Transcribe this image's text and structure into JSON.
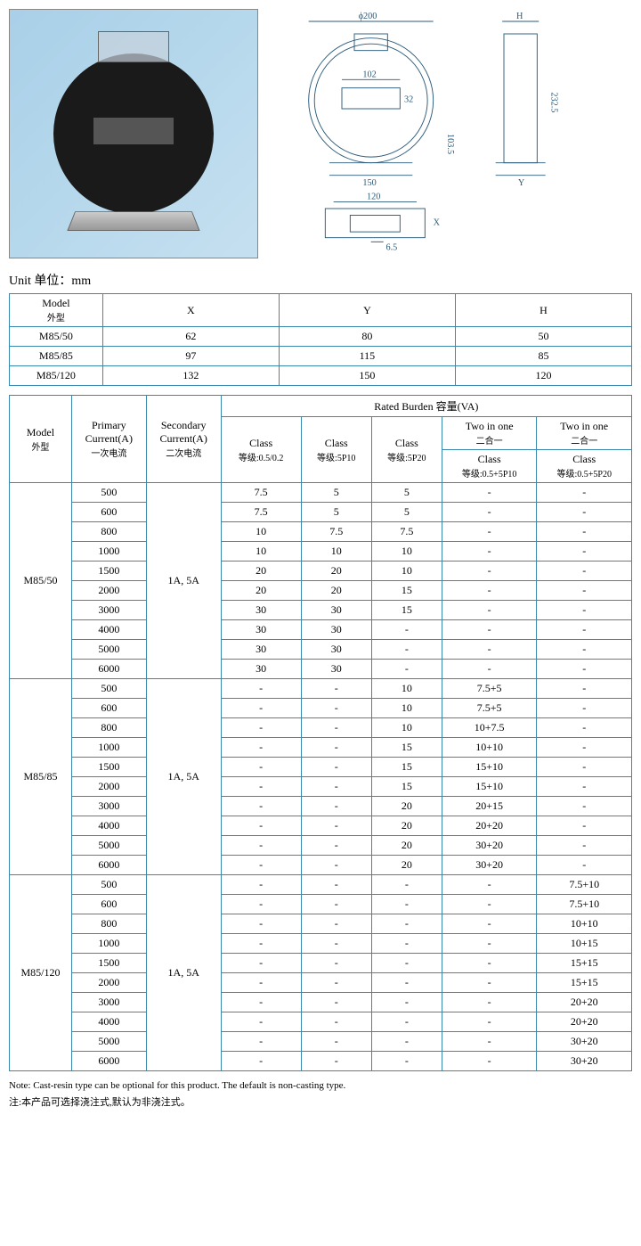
{
  "unit_label": "Unit 单位：mm",
  "drawing_dims": {
    "phi200": "ϕ200",
    "d102": "102",
    "d32": "32",
    "d150": "150",
    "d232_5": "232.5",
    "d103_5": "103.5",
    "H": "H",
    "Y": "Y",
    "X": "X",
    "d120": "120",
    "d6_5": "6.5"
  },
  "table1": {
    "headers": {
      "model": "Model",
      "model_cn": "外型",
      "X": "X",
      "Y": "Y",
      "H": "H"
    },
    "rows": [
      {
        "model": "M85/50",
        "X": "62",
        "Y": "80",
        "H": "50"
      },
      {
        "model": "M85/85",
        "X": "97",
        "Y": "115",
        "H": "85"
      },
      {
        "model": "M85/120",
        "X": "132",
        "Y": "150",
        "H": "120"
      }
    ]
  },
  "table2": {
    "headers": {
      "model": "Model",
      "model_cn": "外型",
      "primary": "Primary Current(A)",
      "primary_cn": "一次电流",
      "secondary": "Secondary Current(A)",
      "secondary_cn": "二次电流",
      "rated_burden": "Rated Burden 容量(VA)",
      "class1": "Class",
      "class1_cn": "等级:0.5/0.2",
      "class2": "Class",
      "class2_cn": "等级:5P10",
      "class3": "Class",
      "class3_cn": "等级:5P20",
      "two_in_one_a": "Two in one",
      "two_in_one_a_cn": "二合一",
      "class4": "Class",
      "class4_cn": "等级:0.5+5P10",
      "two_in_one_b": "Two in one",
      "two_in_one_b_cn": "二合一",
      "class5": "Class",
      "class5_cn": "等级:0.5+5P20"
    },
    "groups": [
      {
        "model": "M85/50",
        "secondary": "1A, 5A",
        "rows": [
          {
            "p": "500",
            "c1": "7.5",
            "c2": "5",
            "c3": "5",
            "c4": "-",
            "c5": "-"
          },
          {
            "p": "600",
            "c1": "7.5",
            "c2": "5",
            "c3": "5",
            "c4": "-",
            "c5": "-"
          },
          {
            "p": "800",
            "c1": "10",
            "c2": "7.5",
            "c3": "7.5",
            "c4": "-",
            "c5": "-"
          },
          {
            "p": "1000",
            "c1": "10",
            "c2": "10",
            "c3": "10",
            "c4": "-",
            "c5": "-"
          },
          {
            "p": "1500",
            "c1": "20",
            "c2": "20",
            "c3": "10",
            "c4": "-",
            "c5": "-"
          },
          {
            "p": "2000",
            "c1": "20",
            "c2": "20",
            "c3": "15",
            "c4": "-",
            "c5": "-"
          },
          {
            "p": "3000",
            "c1": "30",
            "c2": "30",
            "c3": "15",
            "c4": "-",
            "c5": "-"
          },
          {
            "p": "4000",
            "c1": "30",
            "c2": "30",
            "c3": "-",
            "c4": "-",
            "c5": "-"
          },
          {
            "p": "5000",
            "c1": "30",
            "c2": "30",
            "c3": "-",
            "c4": "-",
            "c5": "-"
          },
          {
            "p": "6000",
            "c1": "30",
            "c2": "30",
            "c3": "-",
            "c4": "-",
            "c5": "-"
          }
        ]
      },
      {
        "model": "M85/85",
        "secondary": "1A, 5A",
        "rows": [
          {
            "p": "500",
            "c1": "-",
            "c2": "-",
            "c3": "10",
            "c4": "7.5+5",
            "c5": "-"
          },
          {
            "p": "600",
            "c1": "-",
            "c2": "-",
            "c3": "10",
            "c4": "7.5+5",
            "c5": "-"
          },
          {
            "p": "800",
            "c1": "-",
            "c2": "-",
            "c3": "10",
            "c4": "10+7.5",
            "c5": "-"
          },
          {
            "p": "1000",
            "c1": "-",
            "c2": "-",
            "c3": "15",
            "c4": "10+10",
            "c5": "-"
          },
          {
            "p": "1500",
            "c1": "-",
            "c2": "-",
            "c3": "15",
            "c4": "15+10",
            "c5": "-"
          },
          {
            "p": "2000",
            "c1": "-",
            "c2": "-",
            "c3": "15",
            "c4": "15+10",
            "c5": "-"
          },
          {
            "p": "3000",
            "c1": "-",
            "c2": "-",
            "c3": "20",
            "c4": "20+15",
            "c5": "-"
          },
          {
            "p": "4000",
            "c1": "-",
            "c2": "-",
            "c3": "20",
            "c4": "20+20",
            "c5": "-"
          },
          {
            "p": "5000",
            "c1": "-",
            "c2": "-",
            "c3": "20",
            "c4": "30+20",
            "c5": "-"
          },
          {
            "p": "6000",
            "c1": "-",
            "c2": "-",
            "c3": "20",
            "c4": "30+20",
            "c5": "-"
          }
        ]
      },
      {
        "model": "M85/120",
        "secondary": "1A, 5A",
        "rows": [
          {
            "p": "500",
            "c1": "-",
            "c2": "-",
            "c3": "-",
            "c4": "-",
            "c5": "7.5+10"
          },
          {
            "p": "600",
            "c1": "-",
            "c2": "-",
            "c3": "-",
            "c4": "-",
            "c5": "7.5+10"
          },
          {
            "p": "800",
            "c1": "-",
            "c2": "-",
            "c3": "-",
            "c4": "-",
            "c5": "10+10"
          },
          {
            "p": "1000",
            "c1": "-",
            "c2": "-",
            "c3": "-",
            "c4": "-",
            "c5": "10+15"
          },
          {
            "p": "1500",
            "c1": "-",
            "c2": "-",
            "c3": "-",
            "c4": "-",
            "c5": "15+15"
          },
          {
            "p": "2000",
            "c1": "-",
            "c2": "-",
            "c3": "-",
            "c4": "-",
            "c5": "15+15"
          },
          {
            "p": "3000",
            "c1": "-",
            "c2": "-",
            "c3": "-",
            "c4": "-",
            "c5": "20+20"
          },
          {
            "p": "4000",
            "c1": "-",
            "c2": "-",
            "c3": "-",
            "c4": "-",
            "c5": "20+20"
          },
          {
            "p": "5000",
            "c1": "-",
            "c2": "-",
            "c3": "-",
            "c4": "-",
            "c5": "30+20"
          },
          {
            "p": "6000",
            "c1": "-",
            "c2": "-",
            "c3": "-",
            "c4": "-",
            "c5": "30+20"
          }
        ]
      }
    ]
  },
  "note_en": "Note: Cast-resin type can be optional for this product. The default is non-casting type.",
  "note_cn": "注:本产品可选择浇注式,默认为非浇注式。",
  "colors": {
    "border": "#3a8ab0",
    "drawing": "#2a5a7a",
    "photo_bg": "#a8d0e8"
  }
}
